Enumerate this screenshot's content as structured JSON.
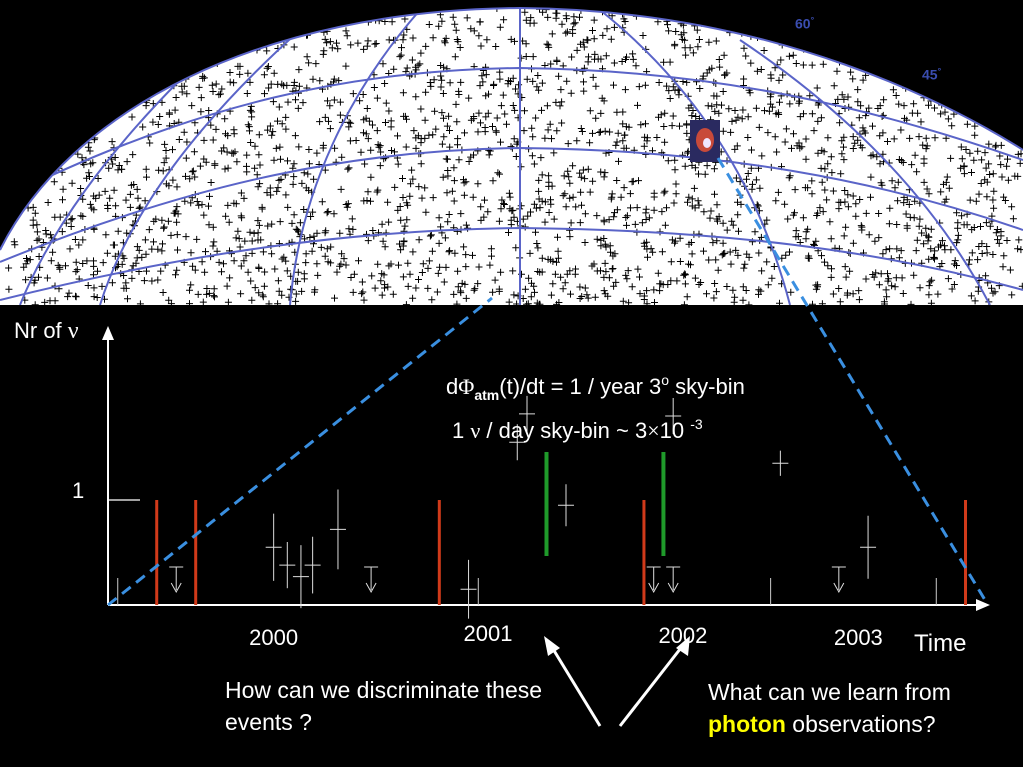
{
  "chart_data": {
    "type": "scatter",
    "title": "",
    "ylabel_prefix": "Nr of ",
    "ylabel_symbol": "ν",
    "xlabel": "Time",
    "y_tick": "1",
    "x_ticks": [
      {
        "label": "2000",
        "year": 2000.3
      },
      {
        "label": "2001",
        "year": 2001.4
      },
      {
        "label": "2002",
        "year": 2002.4
      },
      {
        "label": "2003",
        "year": 2003.3
      }
    ],
    "time_range": [
      1999.45,
      2003.95
    ],
    "annotations": {
      "flux_prefix": "d",
      "flux_phi": "Φ",
      "flux_sub": "atm",
      "flux_rest": "(t)/dt = 1  / year 3",
      "flux_deg": "o",
      "flux_end": " sky-bin",
      "rate_prefix": "1 ",
      "rate_nu": "ν",
      "rate_mid": " / day sky-bin ~ 3",
      "rate_times": "×",
      "rate_ten": "10 ",
      "rate_exp": "-3"
    },
    "events_red": [
      1999.7,
      1999.9,
      2001.15,
      2002.2,
      2003.85
    ],
    "events_green": [
      2001.7,
      2002.3
    ],
    "points": [
      {
        "t": 2000.3,
        "y": 0.55,
        "err": 0.32
      },
      {
        "t": 2000.37,
        "y": 0.38,
        "err": 0.22
      },
      {
        "t": 2000.44,
        "y": 0.27,
        "err": 0.3
      },
      {
        "t": 2000.5,
        "y": 0.38,
        "err": 0.27
      },
      {
        "t": 2000.63,
        "y": 0.72,
        "err": 0.38
      },
      {
        "t": 2001.3,
        "y": 0.15,
        "err": 0.28
      },
      {
        "t": 2001.8,
        "y": 0.95,
        "err": 0.2
      },
      {
        "t": 2002.9,
        "y": 1.35,
        "err": 0.12
      },
      {
        "t": 2003.35,
        "y": 0.55,
        "err": 0.3
      }
    ],
    "upper_limits": [
      1999.8,
      2000.8,
      2002.25,
      2002.35,
      2003.2
    ],
    "crosses_upper": [
      {
        "t": 2001.6,
        "y": 1.82
      },
      {
        "t": 2001.55,
        "y": 1.55
      },
      {
        "t": 2002.35,
        "y": 1.8
      }
    ],
    "grid": false
  },
  "sky_map": {
    "latitude_labels": [
      {
        "label": "60",
        "deg": "°"
      },
      {
        "label": "45",
        "deg": "°"
      }
    ],
    "colors": {
      "grid": "#5a64c8",
      "marker": "#000000",
      "background": "#ffffff"
    }
  },
  "questions": {
    "left": "How can we discriminate these events ?",
    "right_prefix": "What can we learn from ",
    "right_highlight": "photon",
    "right_suffix": " observations?"
  },
  "colors": {
    "background": "#000000",
    "axis": "#ffffff",
    "event_red": "#d03a1a",
    "event_green": "#1f9a2a",
    "dashed": "#3a8fe0",
    "highlight": "#ffff00"
  }
}
